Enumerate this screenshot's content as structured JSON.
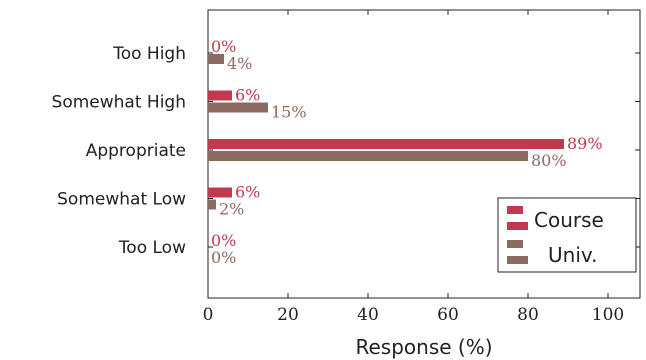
{
  "chart_data": {
    "type": "bar",
    "orientation": "horizontal",
    "categories": [
      "Too High",
      "Somewhat High",
      "Appropriate",
      "Somewhat Low",
      "Too Low"
    ],
    "series": [
      {
        "name": "Course",
        "values": [
          0,
          6,
          89,
          6,
          0
        ],
        "labels": [
          "0%",
          "6%",
          "89%",
          "6%",
          "0%"
        ],
        "color": "#c0394f"
      },
      {
        "name": "Univ.",
        "values": [
          4,
          15,
          80,
          2,
          0
        ],
        "labels": [
          "4%",
          "15%",
          "80%",
          "2%",
          "0%"
        ],
        "color": "#8b6a60"
      }
    ],
    "xlabel": "Response (%)",
    "ylabel": "",
    "xlim": [
      0,
      108
    ],
    "xticks": [
      "0",
      "20",
      "40",
      "60",
      "80",
      "100"
    ],
    "legend": {
      "position": "bottom-right",
      "entries": [
        "Course",
        "Univ."
      ]
    },
    "grid": false
  }
}
